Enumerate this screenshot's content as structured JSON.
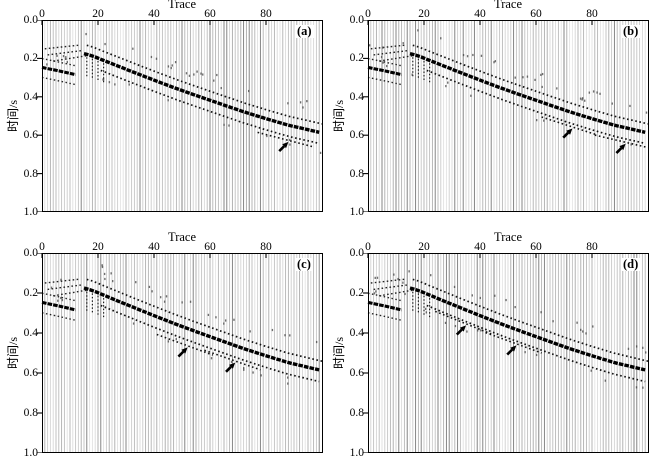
{
  "chart_data": {
    "type": "seismic-wiggle",
    "layout": "2x2-grid",
    "panels": [
      {
        "label": "(a)",
        "arrows": [
          {
            "trace": 88,
            "time": 0.635
          }
        ]
      },
      {
        "label": "(b)",
        "arrows": [
          {
            "trace": 73,
            "time": 0.565
          },
          {
            "trace": 92,
            "time": 0.645
          }
        ]
      },
      {
        "label": "(c)",
        "arrows": [
          {
            "trace": 52,
            "time": 0.472
          },
          {
            "trace": 69,
            "time": 0.548
          }
        ]
      },
      {
        "label": "(d)",
        "arrows": [
          {
            "trace": 35,
            "time": 0.362
          },
          {
            "trace": 53,
            "time": 0.462
          }
        ]
      }
    ],
    "common": {
      "xlabel": "Trace",
      "ylabel": "时间/s",
      "x_ticks": [
        "0",
        "20",
        "40",
        "60",
        "80"
      ],
      "y_ticks": [
        "0.0",
        "0.2",
        "0.4",
        "0.6",
        "0.8",
        "1.0"
      ],
      "x_range": [
        0,
        100
      ],
      "y_range": [
        0.0,
        1.0
      ],
      "n_traces": 100,
      "main_event": [
        [
          15,
          0.175
        ],
        [
          18,
          0.187
        ],
        [
          24,
          0.222
        ],
        [
          32,
          0.268
        ],
        [
          40,
          0.313
        ],
        [
          48,
          0.357
        ],
        [
          56,
          0.398
        ],
        [
          64,
          0.438
        ],
        [
          72,
          0.478
        ],
        [
          80,
          0.514
        ],
        [
          88,
          0.548
        ],
        [
          94,
          0.568
        ],
        [
          100,
          0.588
        ]
      ],
      "direct_event": [
        [
          0,
          0.247
        ],
        [
          5,
          0.262
        ],
        [
          10,
          0.278
        ],
        [
          13,
          0.288
        ]
      ],
      "upper_flank_offset": -0.047,
      "lower_flank_offset": 0.058,
      "upper_flank_start": 16,
      "lower_flank_start": 21,
      "direct_upper_offset": -0.046,
      "direct_lower_offset": 0.052,
      "fan_arcs": [
        [
          [
            1,
            0.15
          ],
          [
            14,
            0.13
          ]
        ],
        [
          [
            2,
            0.182
          ],
          [
            15,
            0.158
          ]
        ],
        [
          [
            4,
            0.214
          ],
          [
            16,
            0.186
          ]
        ]
      ],
      "kink_scatter_traces": [
        16,
        18,
        20,
        22
      ]
    },
    "colors": {
      "ink": "#000000",
      "trace_line": "#bdbdbd",
      "trace_line_dark": "#8a8a8a",
      "background": "#ffffff"
    }
  }
}
